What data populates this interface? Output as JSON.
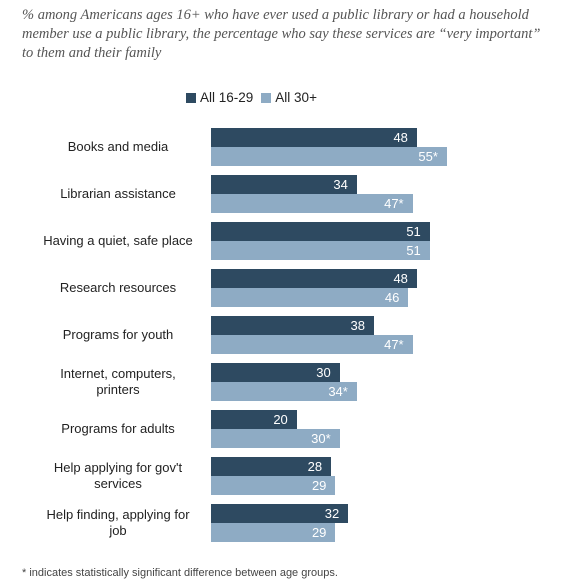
{
  "chart_data": {
    "type": "bar",
    "orientation": "horizontal",
    "title": "% among Americans ages 16+ who have ever used a public library or had a household member use a public library, the percentage who say these services are “very important” to them and their family",
    "categories": [
      "Books and media",
      "Librarian assistance",
      "Having a quiet, safe place",
      "Research resources",
      "Programs for youth",
      "Internet, computers, printers",
      "Programs for adults",
      "Help applying for gov't services",
      "Help finding, applying for job"
    ],
    "series": [
      {
        "name": "All 16-29",
        "color": "#2e4a61",
        "values": [
          48,
          34,
          51,
          48,
          38,
          30,
          20,
          28,
          32
        ]
      },
      {
        "name": "All 30+",
        "color": "#8eabc4",
        "values": [
          55,
          47,
          51,
          46,
          47,
          34,
          30,
          29,
          29
        ],
        "value_labels": [
          "55*",
          "47*",
          "51",
          "46",
          "47*",
          "34*",
          "30*",
          "29",
          "29"
        ]
      }
    ],
    "footnote": "* indicates statistically significant difference between age groups."
  }
}
